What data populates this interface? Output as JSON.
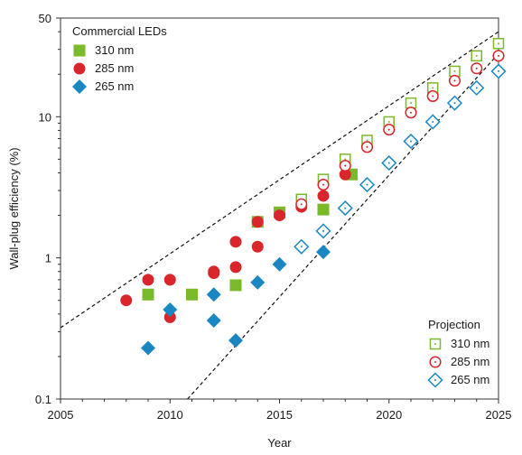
{
  "chart_data": {
    "type": "scatter",
    "xlabel": "Year",
    "ylabel": "Wall-plug efficiency (%)",
    "xlim": [
      2005,
      2025
    ],
    "ylim": [
      0.1,
      50
    ],
    "y_scale": "log",
    "x_ticks": [
      "2005",
      "2010",
      "2015",
      "2020",
      "2025"
    ],
    "y_ticks": [
      {
        "value": 0.1,
        "label": "0.1"
      },
      {
        "value": 1,
        "label": "1"
      },
      {
        "value": 10,
        "label": "10"
      },
      {
        "value": 50,
        "label": "50"
      }
    ],
    "grid": false,
    "legend_commercial": {
      "title": "Commercial LEDs",
      "placement": "top-left",
      "entries": [
        "310 nm",
        "285 nm",
        "265 nm"
      ]
    },
    "legend_projection": {
      "title": "Projection",
      "placement": "bottom-right",
      "entries": [
        "310 nm",
        "285 nm",
        "265 nm"
      ]
    },
    "colors": {
      "nm310": "#7ab929",
      "nm285": "#d9262c",
      "nm265": "#1b87c2"
    },
    "trend_lines": [
      {
        "style": "dashed",
        "points": [
          [
            2005,
            0.32
          ],
          [
            2025,
            40
          ]
        ]
      },
      {
        "style": "dashed",
        "points": [
          [
            2010.8,
            0.1
          ],
          [
            2025,
            28
          ]
        ]
      }
    ],
    "series": [
      {
        "name": "310 nm",
        "group": "commercial",
        "marker": "square",
        "points": [
          [
            2009,
            0.55
          ],
          [
            2011,
            0.55
          ],
          [
            2013,
            0.64
          ],
          [
            2014,
            1.8
          ],
          [
            2015,
            2.1
          ],
          [
            2017,
            2.2
          ],
          [
            2018.3,
            3.9
          ]
        ]
      },
      {
        "name": "285 nm",
        "group": "commercial",
        "marker": "circle",
        "points": [
          [
            2008,
            0.5
          ],
          [
            2009,
            0.7
          ],
          [
            2010,
            0.7
          ],
          [
            2010,
            0.38
          ],
          [
            2012,
            0.8
          ],
          [
            2012,
            0.78
          ],
          [
            2013,
            1.3
          ],
          [
            2013,
            0.86
          ],
          [
            2014,
            1.8
          ],
          [
            2014,
            1.2
          ],
          [
            2015,
            2.0
          ],
          [
            2016,
            2.3
          ],
          [
            2017,
            2.75
          ],
          [
            2018,
            3.9
          ]
        ]
      },
      {
        "name": "265 nm",
        "group": "commercial",
        "marker": "diamond",
        "points": [
          [
            2009,
            0.23
          ],
          [
            2010,
            0.43
          ],
          [
            2012,
            0.55
          ],
          [
            2012,
            0.36
          ],
          [
            2013,
            0.26
          ],
          [
            2014,
            0.67
          ],
          [
            2015,
            0.9
          ],
          [
            2017,
            1.1
          ]
        ]
      },
      {
        "name": "310 nm",
        "group": "projection",
        "marker": "square-open",
        "points": [
          [
            2016,
            2.6
          ],
          [
            2017,
            3.6
          ],
          [
            2018,
            5.0
          ],
          [
            2019,
            6.8
          ],
          [
            2020,
            9.2
          ],
          [
            2021,
            12.5
          ],
          [
            2022,
            16.0
          ],
          [
            2023,
            21.0
          ],
          [
            2024,
            27.0
          ],
          [
            2025,
            33.0
          ]
        ]
      },
      {
        "name": "285 nm",
        "group": "projection",
        "marker": "circle-open",
        "points": [
          [
            2016,
            2.4
          ],
          [
            2017,
            3.3
          ],
          [
            2018,
            4.5
          ],
          [
            2019,
            6.1
          ],
          [
            2020,
            8.1
          ],
          [
            2021,
            10.7
          ],
          [
            2022,
            14.0
          ],
          [
            2023,
            18.0
          ],
          [
            2024,
            22.0
          ],
          [
            2025,
            27.0
          ]
        ]
      },
      {
        "name": "265 nm",
        "group": "projection",
        "marker": "diamond-open",
        "points": [
          [
            2016,
            1.2
          ],
          [
            2017,
            1.55
          ],
          [
            2018,
            2.25
          ],
          [
            2019,
            3.3
          ],
          [
            2020,
            4.7
          ],
          [
            2021,
            6.7
          ],
          [
            2022,
            9.2
          ],
          [
            2023,
            12.5
          ],
          [
            2024,
            16.0
          ],
          [
            2025,
            21.0
          ]
        ]
      }
    ]
  }
}
